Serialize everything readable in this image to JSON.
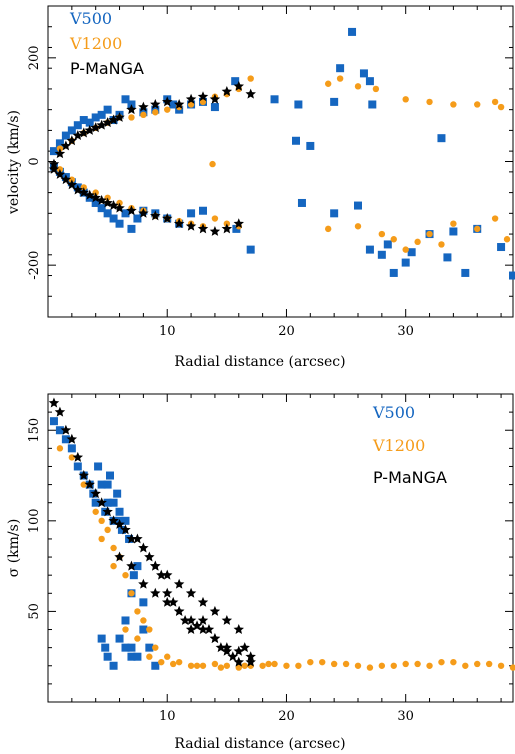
{
  "colors": {
    "V500": "#1566c0",
    "V1200": "#f59c1a",
    "P-MaNGA": "#000000"
  },
  "chart_data": [
    {
      "type": "scatter",
      "xlabel": "Radial distance (arcsec)",
      "ylabel": "velocity (km/s)",
      "xlim": [
        0,
        39
      ],
      "ylim": [
        -300,
        300
      ],
      "xticks": [
        10,
        20,
        30
      ],
      "yticks": [
        -200,
        0,
        200
      ],
      "legend": {
        "placement": "top-left",
        "entries": [
          "V500",
          "V1200",
          "P-MaNGA"
        ]
      },
      "series": [
        {
          "name": "V500",
          "marker": "square",
          "x": [
            0.5,
            1,
            1.5,
            2,
            2.5,
            3,
            3.5,
            4,
            4.5,
            5,
            5.5,
            6,
            6.5,
            7,
            8,
            9,
            10,
            10.5,
            11,
            12,
            13,
            14,
            15.7,
            0.5,
            1,
            1.5,
            2,
            2.5,
            3,
            3.5,
            4,
            4.5,
            5,
            5.5,
            6,
            6.5,
            7,
            7.5,
            8,
            9,
            10,
            11,
            12,
            13,
            15.8,
            17,
            19,
            20.8,
            21,
            22,
            24,
            24.5,
            25.5,
            26.5,
            27,
            27.2,
            33,
            21.3,
            24,
            26,
            27,
            28,
            28.5,
            29,
            30,
            30.5,
            32,
            33.5,
            34,
            35,
            36,
            38,
            39
          ],
          "y": [
            20,
            35,
            50,
            60,
            70,
            80,
            75,
            85,
            90,
            100,
            80,
            90,
            120,
            110,
            95,
            100,
            120,
            110,
            100,
            110,
            115,
            105,
            155,
            -10,
            -20,
            -30,
            -40,
            -50,
            -60,
            -70,
            -80,
            -90,
            -100,
            -110,
            -120,
            -100,
            -130,
            -110,
            -95,
            -100,
            -110,
            -120,
            -100,
            -95,
            -130,
            -170,
            120,
            40,
            110,
            30,
            115,
            180,
            250,
            170,
            155,
            110,
            45,
            -80,
            -100,
            -85,
            -170,
            -180,
            -160,
            -215,
            -195,
            -175,
            -140,
            -185,
            -135,
            -215,
            -130,
            -165,
            -220
          ]
        },
        {
          "name": "V1200",
          "marker": "circle",
          "x": [
            1,
            2,
            3,
            4,
            5,
            6,
            7,
            8,
            9,
            10,
            11,
            12,
            13,
            14,
            15,
            16,
            17,
            1,
            2,
            3,
            4,
            5,
            6,
            7,
            8,
            9,
            10,
            11,
            12,
            13,
            14,
            15,
            16,
            13.8,
            23.5,
            24.5,
            26,
            27.5,
            30,
            32,
            34,
            36,
            37.5,
            38,
            23.5,
            26,
            28,
            29,
            30,
            31,
            32,
            33,
            34,
            36,
            37.5,
            38.5
          ],
          "y": [
            25,
            40,
            55,
            65,
            75,
            85,
            85,
            90,
            95,
            100,
            105,
            110,
            115,
            125,
            130,
            140,
            160,
            -15,
            -35,
            -50,
            -60,
            -70,
            -80,
            -90,
            -95,
            -105,
            -110,
            -115,
            -120,
            -125,
            -110,
            -120,
            -125,
            -5,
            150,
            160,
            145,
            140,
            120,
            115,
            110,
            110,
            115,
            105,
            -130,
            -125,
            -140,
            -150,
            -170,
            -155,
            -140,
            -160,
            -120,
            -130,
            -110,
            -150
          ]
        },
        {
          "name": "P-MaNGA",
          "marker": "star",
          "x": [
            0.5,
            1,
            1.5,
            2,
            2.5,
            3,
            3.5,
            4,
            4.5,
            5,
            5.5,
            6,
            7,
            8,
            9,
            10,
            11,
            12,
            13,
            14,
            15,
            16,
            17,
            0.5,
            1,
            1.5,
            2,
            2.5,
            3,
            3.5,
            4,
            4.5,
            5,
            5.5,
            6,
            7,
            8,
            9,
            10,
            11,
            12,
            13,
            14,
            15,
            16
          ],
          "y": [
            -5,
            15,
            30,
            40,
            50,
            55,
            60,
            65,
            70,
            75,
            80,
            85,
            100,
            105,
            110,
            115,
            110,
            120,
            125,
            120,
            135,
            145,
            130,
            -15,
            -25,
            -35,
            -45,
            -55,
            -60,
            -65,
            -70,
            -75,
            -80,
            -85,
            -90,
            -95,
            -100,
            -105,
            -110,
            -120,
            -125,
            -130,
            -135,
            -130,
            -120
          ]
        }
      ]
    },
    {
      "type": "scatter",
      "xlabel": "Radial distance (arcsec)",
      "ylabel": "σ (km/s)",
      "xlim": [
        0,
        39
      ],
      "ylim": [
        0,
        170
      ],
      "xticks": [
        10,
        20,
        30
      ],
      "yticks": [
        50,
        100,
        150
      ],
      "legend": {
        "placement": "top-right",
        "entries": [
          "V500",
          "V1200",
          "P-MaNGA"
        ]
      },
      "series": [
        {
          "name": "V500",
          "marker": "square",
          "x": [
            0.5,
            1,
            1.5,
            2,
            2.5,
            3,
            3.5,
            3.8,
            4,
            4.2,
            4.5,
            4.8,
            5,
            5.2,
            5.5,
            5.8,
            6,
            6.2,
            6.5,
            6.8,
            7,
            7.2,
            7.5,
            8,
            4.5,
            4.8,
            5,
            5.5,
            6,
            6.5,
            7,
            5,
            5.5,
            6,
            6.5,
            7,
            7.5,
            8,
            8.5,
            9
          ],
          "y": [
            155,
            150,
            145,
            140,
            130,
            125,
            120,
            115,
            110,
            130,
            120,
            105,
            110,
            125,
            100,
            115,
            105,
            95,
            100,
            90,
            60,
            70,
            75,
            55,
            35,
            30,
            25,
            20,
            35,
            30,
            25,
            120,
            110,
            100,
            45,
            30,
            25,
            40,
            30,
            20
          ]
        },
        {
          "name": "V1200",
          "marker": "circle",
          "x": [
            1,
            2,
            3,
            4,
            4.5,
            5,
            5.5,
            6,
            6.5,
            7,
            7.5,
            8,
            8.5,
            9,
            10,
            11,
            12,
            13,
            14,
            15,
            16,
            17,
            18,
            19,
            20,
            22,
            24,
            26,
            28,
            30,
            32,
            34,
            36,
            38,
            4.5,
            5.5,
            6.5,
            7.5,
            8.5,
            9.5,
            10.5,
            12.5,
            14.5,
            16.5,
            18.5,
            21,
            23,
            25,
            27,
            29,
            31,
            33,
            35,
            37,
            39
          ],
          "y": [
            140,
            135,
            120,
            105,
            100,
            95,
            85,
            80,
            70,
            60,
            50,
            45,
            40,
            30,
            25,
            22,
            20,
            20,
            21,
            20,
            19,
            20,
            20,
            21,
            20,
            22,
            21,
            20,
            20,
            21,
            20,
            22,
            21,
            20,
            90,
            75,
            40,
            35,
            25,
            22,
            21,
            20,
            19,
            20,
            21,
            20,
            22,
            21,
            19,
            20,
            21,
            22,
            20,
            21,
            19
          ]
        },
        {
          "name": "P-MaNGA",
          "marker": "star",
          "x": [
            0.5,
            1,
            1.5,
            2,
            2.5,
            3,
            3.5,
            4,
            4.5,
            5,
            5.5,
            6,
            6.5,
            7,
            7.5,
            8,
            8.5,
            9,
            9.5,
            10,
            10.5,
            11,
            11.5,
            12,
            12.5,
            13,
            13.5,
            14,
            14.5,
            15,
            15.5,
            16,
            16.5,
            17,
            6,
            7,
            8,
            9,
            10,
            11,
            12,
            13,
            14,
            15,
            16,
            17,
            9,
            10,
            11,
            12,
            13,
            14,
            15,
            16
          ],
          "y": [
            165,
            160,
            150,
            145,
            135,
            125,
            120,
            115,
            110,
            105,
            100,
            98,
            95,
            90,
            90,
            85,
            80,
            75,
            70,
            60,
            55,
            50,
            45,
            40,
            42,
            45,
            40,
            35,
            30,
            28,
            25,
            22,
            30,
            25,
            80,
            75,
            65,
            60,
            55,
            50,
            45,
            40,
            35,
            30,
            28,
            22,
            75,
            70,
            65,
            60,
            55,
            50,
            45,
            40
          ]
        }
      ]
    }
  ]
}
